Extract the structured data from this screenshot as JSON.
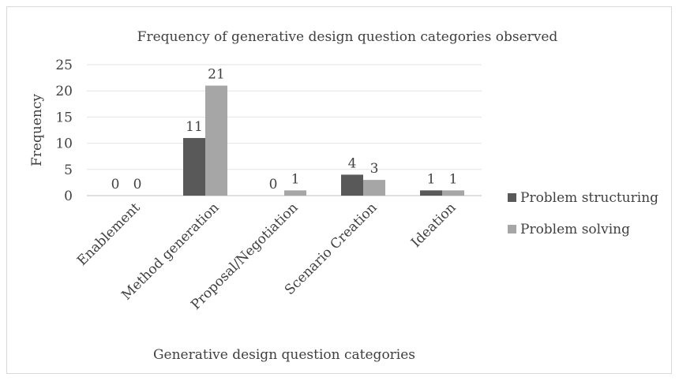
{
  "chart_data": {
    "type": "bar",
    "title": "Frequency of generative design question categories observed",
    "xlabel": "Generative design question categories",
    "ylabel": "Frequency",
    "categories": [
      "Enablement",
      "Method generation",
      "Proposal/Negotiation",
      "Scenario Creation",
      "Ideation"
    ],
    "series": [
      {
        "name": "Problem structuring",
        "values": [
          0,
          11,
          0,
          4,
          1
        ],
        "color": "#595959"
      },
      {
        "name": "Problem solving",
        "values": [
          0,
          21,
          1,
          3,
          1
        ],
        "color": "#a6a6a6"
      }
    ],
    "ylim": [
      0,
      25
    ],
    "yticks": [
      0,
      5,
      10,
      15,
      20,
      25
    ],
    "grid": true,
    "data_labels": true,
    "legend_position": "right"
  }
}
